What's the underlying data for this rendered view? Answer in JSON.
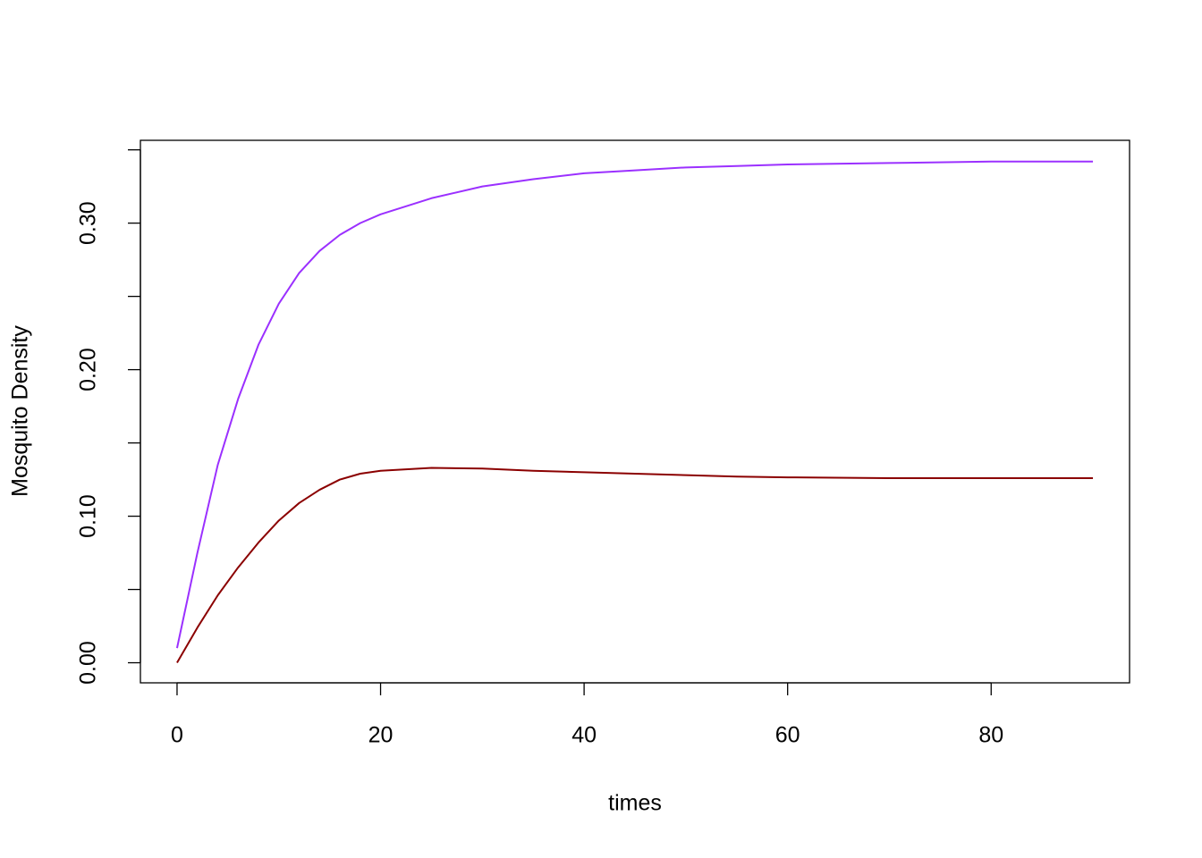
{
  "chart_data": {
    "type": "line",
    "x_label": "times",
    "y_label": "Mosquito Density",
    "x": [
      0,
      2,
      4,
      6,
      8,
      10,
      12,
      14,
      16,
      18,
      20,
      25,
      30,
      35,
      40,
      45,
      50,
      55,
      60,
      70,
      80,
      90
    ],
    "series": [
      {
        "color": "#9B30FF",
        "values": [
          0.01,
          0.075,
          0.135,
          0.18,
          0.217,
          0.245,
          0.266,
          0.281,
          0.292,
          0.3,
          0.306,
          0.317,
          0.325,
          0.33,
          0.334,
          0.336,
          0.338,
          0.339,
          0.34,
          0.341,
          0.342,
          0.342
        ]
      },
      {
        "color": "#8B0000",
        "values": [
          0,
          0.024,
          0.046,
          0.065,
          0.082,
          0.097,
          0.109,
          0.118,
          0.125,
          0.129,
          0.131,
          0.133,
          0.1325,
          0.131,
          0.13,
          0.129,
          0.128,
          0.127,
          0.1265,
          0.126,
          0.126,
          0.126
        ]
      }
    ],
    "xlim": [
      -3.6,
      93.6
    ],
    "ylim": [
      -0.0137,
      0.3565
    ],
    "xticks": [
      0,
      20,
      40,
      60,
      80
    ],
    "yticks": [
      {
        "value": 0,
        "label": "0.00"
      },
      {
        "value": 0.05,
        "label": null
      },
      {
        "value": 0.1,
        "label": "0.10"
      },
      {
        "value": 0.15,
        "label": null
      },
      {
        "value": 0.2,
        "label": "0.20"
      },
      {
        "value": 0.25,
        "label": null
      },
      {
        "value": 0.3,
        "label": "0.30"
      },
      {
        "value": 0.35,
        "label": null
      }
    ],
    "grid": false
  }
}
